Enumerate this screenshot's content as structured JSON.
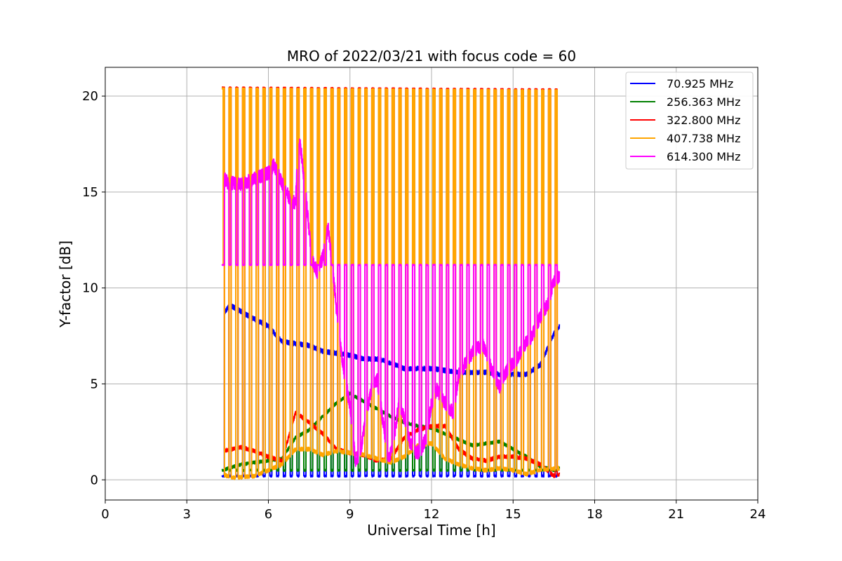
{
  "chart_data": {
    "type": "line",
    "title": "MRO of 2022/03/21 with focus code = 60",
    "xlabel": "Universal Time [h]",
    "ylabel": "Y-factor [dB]",
    "xlim": [
      0,
      24
    ],
    "ylim": [
      -1.05,
      21.5
    ],
    "xticks": [
      "0",
      "3",
      "6",
      "9",
      "12",
      "15",
      "18",
      "21",
      "24"
    ],
    "yticks": [
      "0",
      "5",
      "10",
      "15",
      "20"
    ],
    "grid": true,
    "legend_position": "top-right",
    "cal_period_h": 0.25,
    "cal_peak_duration_h": 0.08,
    "series": [
      {
        "name": " 70.925 MHz",
        "color": "#0000ff",
        "baseline": [
          [
            4.3,
            8.6
          ],
          [
            4.6,
            9.1
          ],
          [
            5.2,
            8.6
          ],
          [
            6.0,
            8.0
          ],
          [
            6.5,
            7.2
          ],
          [
            7.0,
            7.1
          ],
          [
            7.5,
            7.0
          ],
          [
            8.0,
            6.7
          ],
          [
            8.5,
            6.6
          ],
          [
            9.0,
            6.5
          ],
          [
            9.5,
            6.3
          ],
          [
            10.0,
            6.3
          ],
          [
            10.5,
            6.1
          ],
          [
            11.0,
            5.8
          ],
          [
            11.5,
            5.8
          ],
          [
            12.0,
            5.8
          ],
          [
            12.5,
            5.7
          ],
          [
            13.0,
            5.6
          ],
          [
            13.5,
            5.6
          ],
          [
            14.0,
            5.6
          ],
          [
            14.5,
            5.5
          ],
          [
            15.0,
            5.5
          ],
          [
            15.5,
            5.5
          ],
          [
            16.0,
            6.0
          ],
          [
            16.5,
            7.6
          ],
          [
            16.7,
            8.0
          ]
        ],
        "cal_levels": [
          [
            4.3,
            0.2
          ],
          [
            16.7,
            0.2
          ]
        ],
        "noise": 0.12
      },
      {
        "name": "256.363 MHz",
        "color": "#008000",
        "baseline": [
          [
            4.3,
            0.5
          ],
          [
            5.0,
            0.8
          ],
          [
            6.0,
            1.0
          ],
          [
            6.5,
            1.1
          ],
          [
            7.0,
            2.2
          ],
          [
            7.5,
            2.6
          ],
          [
            8.0,
            3.3
          ],
          [
            8.5,
            4.0
          ],
          [
            9.0,
            4.5
          ],
          [
            9.5,
            4.1
          ],
          [
            10.0,
            3.7
          ],
          [
            10.5,
            3.3
          ],
          [
            11.0,
            3.0
          ],
          [
            11.5,
            2.8
          ],
          [
            12.0,
            2.7
          ],
          [
            12.5,
            2.4
          ],
          [
            13.0,
            2.1
          ],
          [
            13.5,
            1.8
          ],
          [
            14.0,
            1.9
          ],
          [
            14.5,
            2.0
          ],
          [
            15.0,
            1.6
          ],
          [
            15.5,
            1.2
          ],
          [
            16.0,
            0.7
          ],
          [
            16.5,
            0.5
          ],
          [
            16.7,
            0.6
          ]
        ],
        "cal_levels": [
          [
            4.3,
            0.5
          ],
          [
            16.7,
            0.5
          ]
        ],
        "noise": 0.08
      },
      {
        "name": "322.800 MHz",
        "color": "#ff0000",
        "baseline": [
          [
            4.3,
            1.5
          ],
          [
            5.0,
            1.7
          ],
          [
            5.5,
            1.5
          ],
          [
            6.0,
            1.2
          ],
          [
            6.5,
            1.0
          ],
          [
            7.0,
            3.5
          ],
          [
            7.5,
            3.0
          ],
          [
            8.0,
            2.4
          ],
          [
            8.5,
            1.6
          ],
          [
            9.0,
            1.4
          ],
          [
            9.5,
            1.3
          ],
          [
            10.0,
            1.0
          ],
          [
            10.5,
            1.1
          ],
          [
            11.0,
            2.2
          ],
          [
            11.5,
            2.6
          ],
          [
            12.0,
            2.8
          ],
          [
            12.5,
            2.8
          ],
          [
            13.0,
            1.6
          ],
          [
            13.5,
            1.1
          ],
          [
            14.0,
            1.0
          ],
          [
            14.5,
            1.2
          ],
          [
            15.0,
            1.2
          ],
          [
            15.5,
            1.1
          ],
          [
            16.0,
            0.8
          ],
          [
            16.5,
            0.2
          ],
          [
            16.7,
            0.3
          ]
        ],
        "cal_peaks": [
          [
            4.3,
            20.45
          ],
          [
            16.7,
            20.35
          ]
        ],
        "noise": 0.1
      },
      {
        "name": "407.738 MHz",
        "color": "#ffa500",
        "baseline": [
          [
            4.3,
            0.3
          ],
          [
            4.7,
            0.1
          ],
          [
            5.5,
            0.2
          ],
          [
            6.0,
            0.5
          ],
          [
            6.5,
            0.8
          ],
          [
            7.0,
            1.6
          ],
          [
            7.5,
            1.6
          ],
          [
            8.0,
            1.3
          ],
          [
            8.5,
            1.5
          ],
          [
            9.0,
            1.4
          ],
          [
            9.5,
            1.3
          ],
          [
            10.0,
            1.1
          ],
          [
            10.5,
            0.9
          ],
          [
            11.0,
            1.2
          ],
          [
            11.5,
            1.8
          ],
          [
            12.0,
            1.9
          ],
          [
            12.5,
            1.1
          ],
          [
            13.0,
            0.8
          ],
          [
            13.5,
            0.6
          ],
          [
            14.0,
            0.5
          ],
          [
            14.5,
            0.6
          ],
          [
            15.0,
            0.5
          ],
          [
            15.5,
            0.3
          ],
          [
            16.0,
            0.5
          ],
          [
            16.5,
            0.6
          ],
          [
            16.7,
            0.6
          ]
        ],
        "cal_peaks": [
          [
            4.3,
            20.4
          ],
          [
            16.7,
            20.3
          ]
        ],
        "cal_mid": 11.2,
        "noise": 0.1
      },
      {
        "name": "614.300 MHz",
        "color": "#ff00ff",
        "baseline": [
          [
            4.3,
            15.9
          ],
          [
            4.5,
            15.5
          ],
          [
            5.0,
            15.4
          ],
          [
            5.5,
            15.7
          ],
          [
            6.0,
            16.0
          ],
          [
            6.2,
            16.4
          ],
          [
            6.5,
            15.5
          ],
          [
            6.8,
            14.6
          ],
          [
            7.0,
            14.4
          ],
          [
            7.1,
            18.0
          ],
          [
            7.2,
            17.2
          ],
          [
            7.4,
            14.5
          ],
          [
            7.6,
            11.5
          ],
          [
            7.8,
            10.8
          ],
          [
            8.0,
            11.6
          ],
          [
            8.2,
            13.2
          ],
          [
            8.4,
            10.5
          ],
          [
            8.6,
            7.5
          ],
          [
            8.8,
            5.5
          ],
          [
            9.0,
            3.8
          ],
          [
            9.2,
            1.0
          ],
          [
            9.4,
            1.5
          ],
          [
            9.6,
            3.5
          ],
          [
            9.8,
            4.8
          ],
          [
            10.0,
            5.2
          ],
          [
            10.2,
            3.2
          ],
          [
            10.4,
            1.0
          ],
          [
            10.6,
            2.0
          ],
          [
            10.8,
            4.0
          ],
          [
            11.0,
            3.2
          ],
          [
            11.2,
            2.0
          ],
          [
            11.4,
            1.4
          ],
          [
            11.6,
            1.5
          ],
          [
            11.8,
            2.2
          ],
          [
            12.0,
            4.0
          ],
          [
            12.2,
            4.7
          ],
          [
            12.5,
            4.0
          ],
          [
            12.8,
            3.5
          ],
          [
            13.0,
            5.5
          ],
          [
            13.3,
            6.2
          ],
          [
            13.6,
            6.8
          ],
          [
            13.9,
            7.0
          ],
          [
            14.2,
            5.8
          ],
          [
            14.5,
            4.8
          ],
          [
            14.8,
            5.8
          ],
          [
            15.1,
            6.2
          ],
          [
            15.4,
            7.0
          ],
          [
            15.7,
            7.5
          ],
          [
            16.0,
            8.5
          ],
          [
            16.3,
            9.2
          ],
          [
            16.5,
            10.4
          ],
          [
            16.7,
            10.6
          ]
        ],
        "cal_peak": 11.2,
        "noise": 0.35
      }
    ]
  }
}
